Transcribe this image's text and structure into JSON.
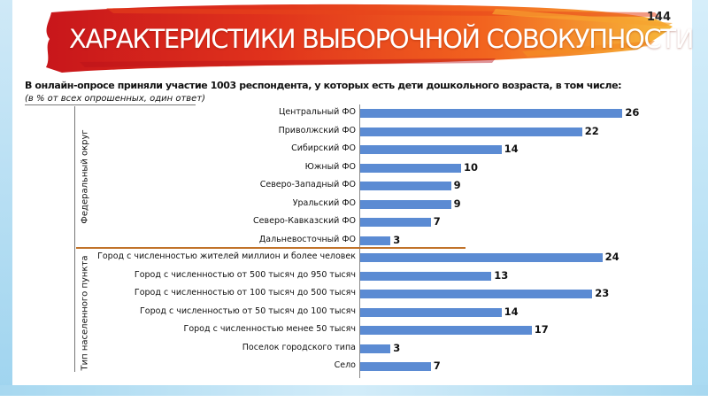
{
  "page_number": "144",
  "title": "ХАРАКТЕРИСТИКИ ВЫБОРОЧНОЙ СОВОКУПНОСТИ",
  "intro": "В онлайн-опросе приняли участие 1003 респондента, у которых есть дети дошкольного возраста, в том числе:",
  "subintro": "(в % от всех опрошенных,   один ответ)",
  "colors": {
    "bar": "#5b8bd3",
    "divider": "#c1732a",
    "title_text": "#ffffff"
  },
  "chart_data": {
    "type": "bar",
    "orientation": "horizontal",
    "groups": [
      {
        "label": "Федеральный округ",
        "categories": [
          "Центральный ФО",
          "Приволжский ФО",
          "Сибирский ФО",
          "Южный ФО",
          "Северо-Западный ФО",
          "Уральский ФО",
          "Северо-Кавказский ФО",
          "Дальневосточный ФО"
        ],
        "values": [
          26,
          22,
          14,
          10,
          9,
          9,
          7,
          3
        ]
      },
      {
        "label": "Тип населенного пункта",
        "categories": [
          "Город с численностью жителей миллион и более человек",
          "Город с численностью от 500 тысяч до 950 тысяч",
          "Город с численностью от 100 тысяч до 500 тысяч",
          "Город с численностью от 50 тысяч до 100 тысяч",
          "Город с численностью менее 50 тысяч",
          "Поселок городского типа",
          "Село"
        ],
        "values": [
          24,
          13,
          23,
          14,
          17,
          3,
          7
        ]
      }
    ],
    "unit": "%",
    "xlim": [
      0,
      30
    ],
    "grid": false,
    "legend": "none"
  }
}
